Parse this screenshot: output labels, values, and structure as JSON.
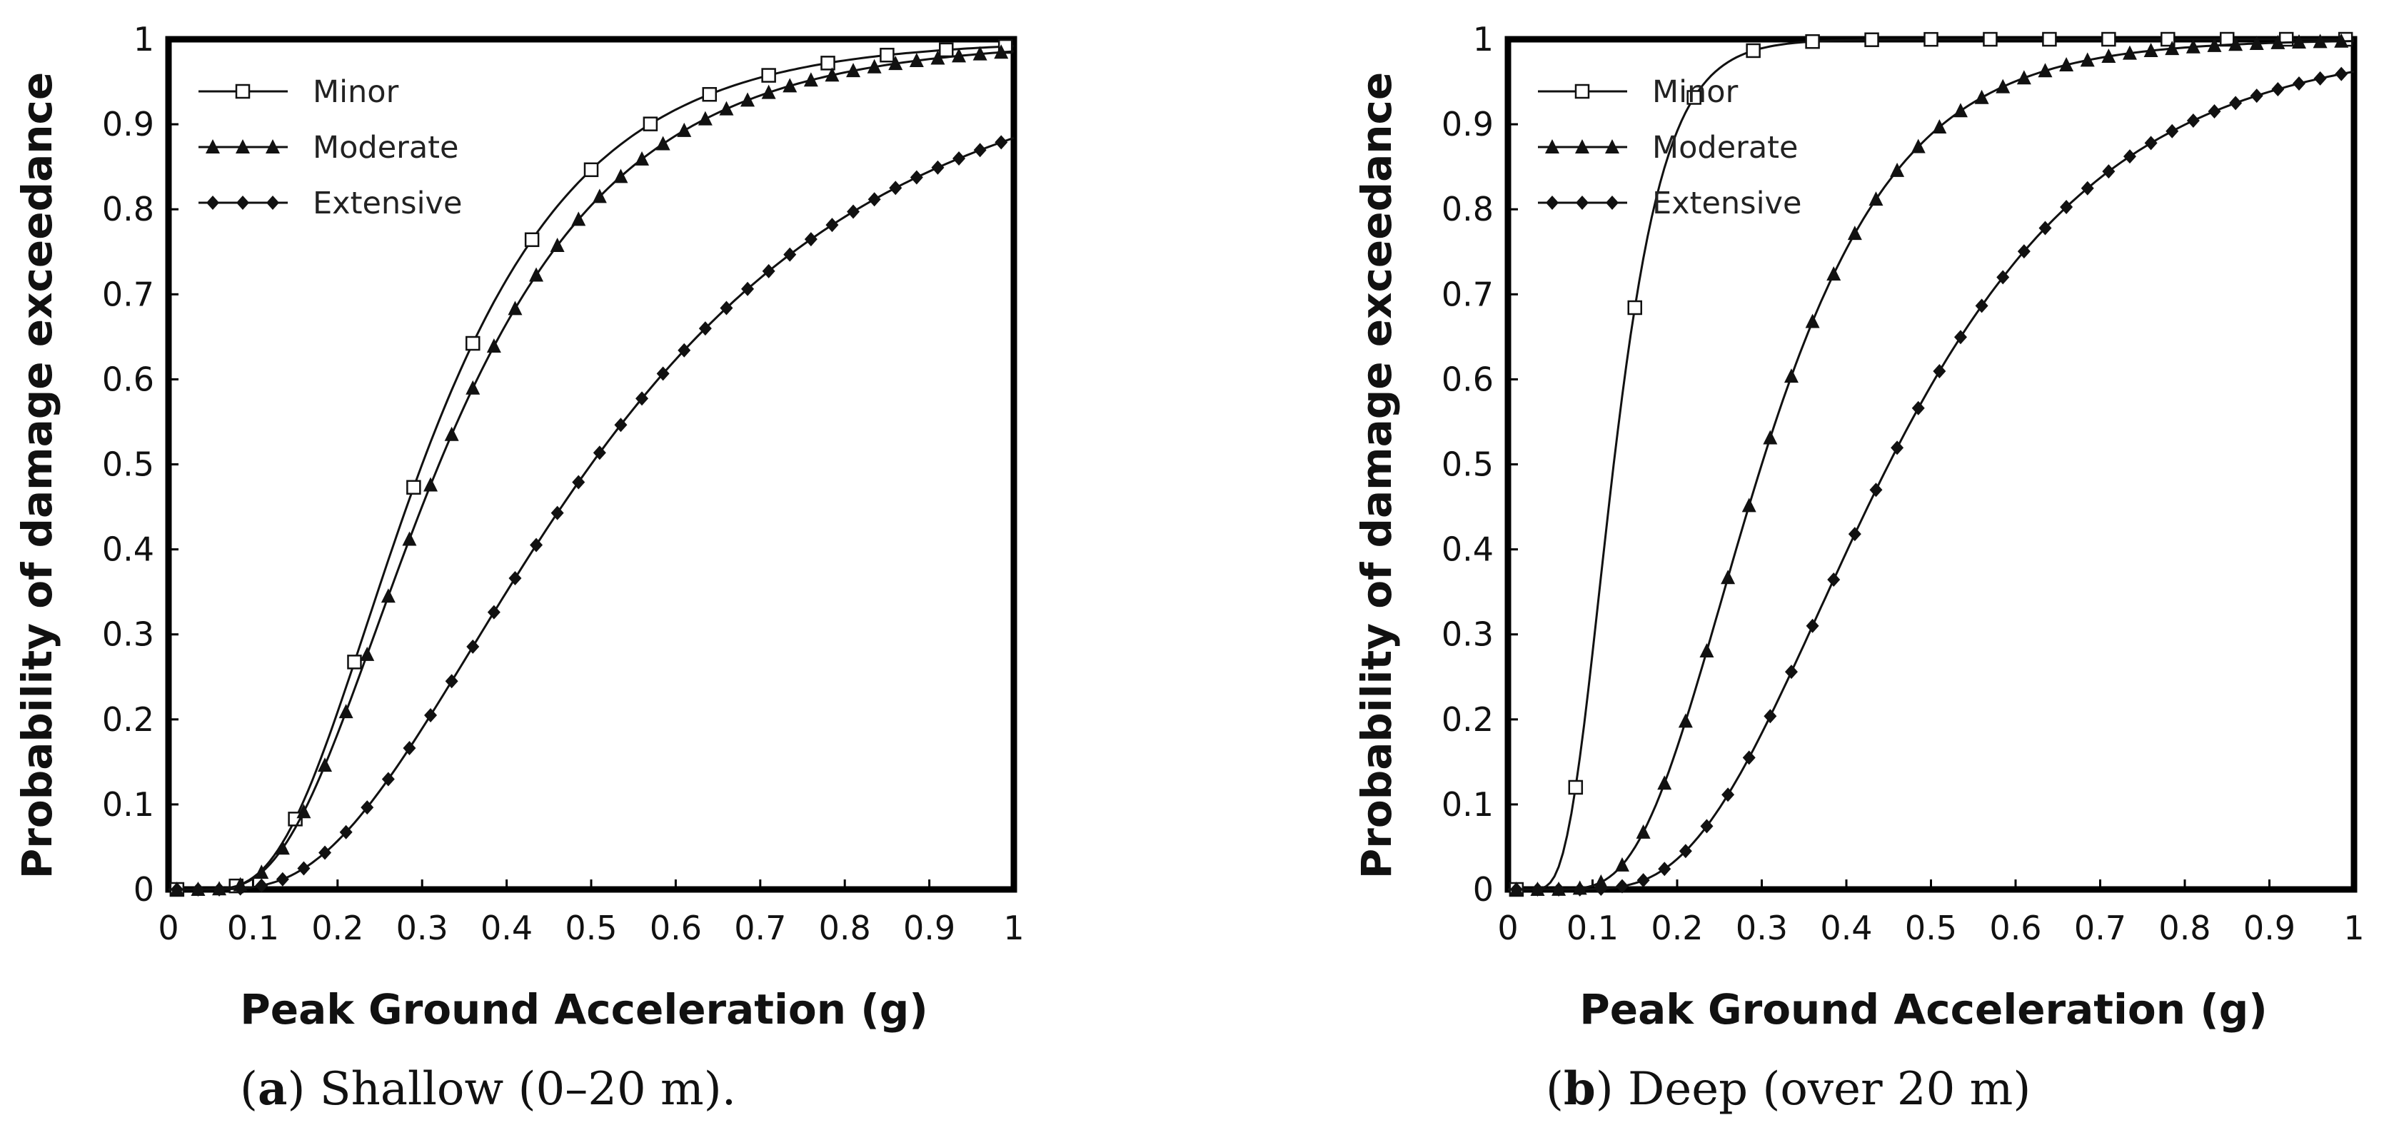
{
  "chart_data": [
    {
      "type": "line",
      "caption_label": "a",
      "caption_text": "Shallow (0–20 m).",
      "xlabel": "Peak Ground Acceleration (g)",
      "ylabel": "Probability of damage exceedance",
      "xlim": [
        0,
        1
      ],
      "ylim": [
        0,
        1
      ],
      "xticks": [
        "0",
        "0.1",
        "0.2",
        "0.3",
        "0.4",
        "0.5",
        "0.6",
        "0.7",
        "0.8",
        "0.9",
        "1"
      ],
      "yticks": [
        "0",
        "0.1",
        "0.2",
        "0.3",
        "0.4",
        "0.5",
        "0.6",
        "0.7",
        "0.8",
        "0.9",
        "1"
      ],
      "legend_position": "top-left",
      "grid": false,
      "series": [
        {
          "name": "Minor",
          "marker": "square-open",
          "median": 0.3,
          "beta": 0.5
        },
        {
          "name": "Moderate",
          "marker": "triangle-filled",
          "median": 0.32,
          "beta": 0.52
        },
        {
          "name": "Extensive",
          "marker": "diamond-filled",
          "median": 0.5,
          "beta": 0.58
        }
      ]
    },
    {
      "type": "line",
      "caption_label": "b",
      "caption_text": "Deep (over 20 m)",
      "xlabel": "Peak Ground Acceleration (g)",
      "ylabel": "Probability of damage exceedance",
      "xlim": [
        0,
        1
      ],
      "ylim": [
        0,
        1
      ],
      "xticks": [
        "0",
        "0.1",
        "0.2",
        "0.3",
        "0.4",
        "0.5",
        "0.6",
        "0.7",
        "0.8",
        "0.9",
        "1"
      ],
      "yticks": [
        "0",
        "0.1",
        "0.2",
        "0.3",
        "0.4",
        "0.5",
        "0.6",
        "0.7",
        "0.8",
        "0.9",
        "1"
      ],
      "legend_position": "top-left",
      "grid": false,
      "series": [
        {
          "name": "Minor",
          "marker": "square-open",
          "median": 0.125,
          "beta": 0.38
        },
        {
          "name": "Moderate",
          "marker": "triangle-filled",
          "median": 0.3,
          "beta": 0.42
        },
        {
          "name": "Extensive",
          "marker": "diamond-filled",
          "median": 0.45,
          "beta": 0.45
        }
      ]
    }
  ]
}
